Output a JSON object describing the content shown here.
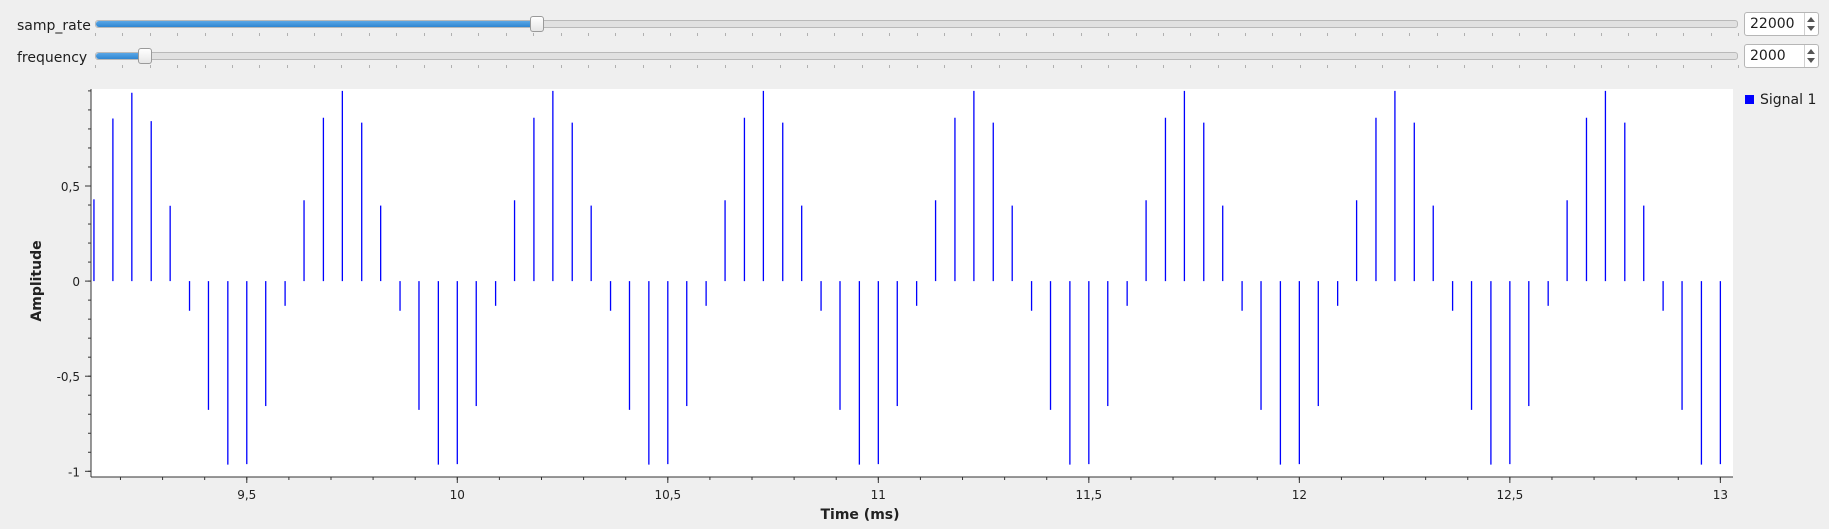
{
  "controls": {
    "samp_rate": {
      "label": "samp_rate",
      "value": "22000",
      "position": 0.268
    },
    "frequency": {
      "label": "frequency",
      "value": "2000",
      "position": 0.029
    }
  },
  "legend": {
    "label": "Signal 1",
    "color": "#0000ff"
  },
  "chart_data": {
    "type": "stem",
    "title": "",
    "xlabel": "Time (ms)",
    "ylabel": "Amplitude",
    "xlim": [
      9.13,
      13.03
    ],
    "ylim": [
      -1.03,
      1.01
    ],
    "xticks": [
      {
        "v": 9.5,
        "label": "9,5"
      },
      {
        "v": 10,
        "label": "10"
      },
      {
        "v": 10.5,
        "label": "10,5"
      },
      {
        "v": 11,
        "label": "11"
      },
      {
        "v": 11.5,
        "label": "11,5"
      },
      {
        "v": 12,
        "label": "12"
      },
      {
        "v": 12.5,
        "label": "12,5"
      },
      {
        "v": 13,
        "label": "13"
      }
    ],
    "yticks": [
      {
        "v": 0.5,
        "label": "0,5"
      },
      {
        "v": 0,
        "label": "0"
      },
      {
        "v": -0.5,
        "label": "-0,5"
      },
      {
        "v": -1,
        "label": "-1"
      }
    ],
    "series": [
      {
        "name": "Signal 1",
        "color": "#0000ff",
        "x": [
          9.182,
          9.227,
          9.273,
          9.318,
          9.364,
          9.409,
          9.455,
          9.5,
          9.545,
          9.591,
          9.636,
          9.682,
          9.727,
          9.773,
          9.818,
          9.864,
          9.909,
          9.955,
          10.0,
          10.045,
          10.091,
          10.136,
          10.182,
          10.227,
          10.273,
          10.318,
          10.364,
          10.409,
          10.455,
          10.5,
          10.545,
          10.591,
          10.636,
          10.682,
          10.727,
          10.773,
          10.818,
          10.864,
          10.909,
          10.955,
          11.0,
          11.045,
          11.091,
          11.136,
          11.182,
          11.227,
          11.273,
          11.318,
          11.364,
          11.409,
          11.455,
          11.5,
          11.545,
          11.591,
          11.636,
          11.682,
          11.727,
          11.773,
          11.818,
          11.864,
          11.909,
          11.955,
          12.0,
          12.045,
          12.091,
          12.136,
          12.182,
          12.227,
          12.273,
          12.318,
          12.364,
          12.409,
          12.455,
          12.5,
          12.545,
          12.591,
          12.636,
          12.682,
          12.727,
          12.773,
          12.818,
          12.864,
          12.909,
          12.955,
          13.0
        ],
        "y": [
          0.855,
          0.99,
          0.841,
          0.396,
          -0.156,
          -0.677,
          -0.965,
          -0.962,
          -0.657,
          -0.13,
          0.425,
          0.859,
          1.0,
          0.833,
          0.397,
          -0.156,
          -0.677,
          -0.965,
          -0.962,
          -0.657,
          -0.13,
          0.425,
          0.859,
          1.0,
          0.833,
          0.397,
          -0.156,
          -0.677,
          -0.965,
          -0.962,
          -0.657,
          -0.13,
          0.425,
          0.859,
          1.0,
          0.833,
          0.397,
          -0.156,
          -0.677,
          -0.965,
          -0.962,
          -0.657,
          -0.13,
          0.425,
          0.859,
          1.0,
          0.833,
          0.397,
          -0.156,
          -0.677,
          -0.965,
          -0.962,
          -0.657,
          -0.13,
          0.425,
          0.859,
          1.0,
          0.833,
          0.397,
          -0.156,
          -0.677,
          -0.965,
          -0.962,
          -0.657,
          -0.13,
          0.425,
          0.859,
          1.0,
          0.833,
          0.397,
          -0.156,
          -0.677,
          -0.965,
          -0.962,
          -0.657,
          -0.13,
          0.425,
          0.859,
          1.0,
          0.833,
          0.397,
          -0.156,
          -0.677,
          -0.965,
          -0.962
        ],
        "first_point": {
          "x": 9.137,
          "y": 0.43
        }
      }
    ]
  }
}
